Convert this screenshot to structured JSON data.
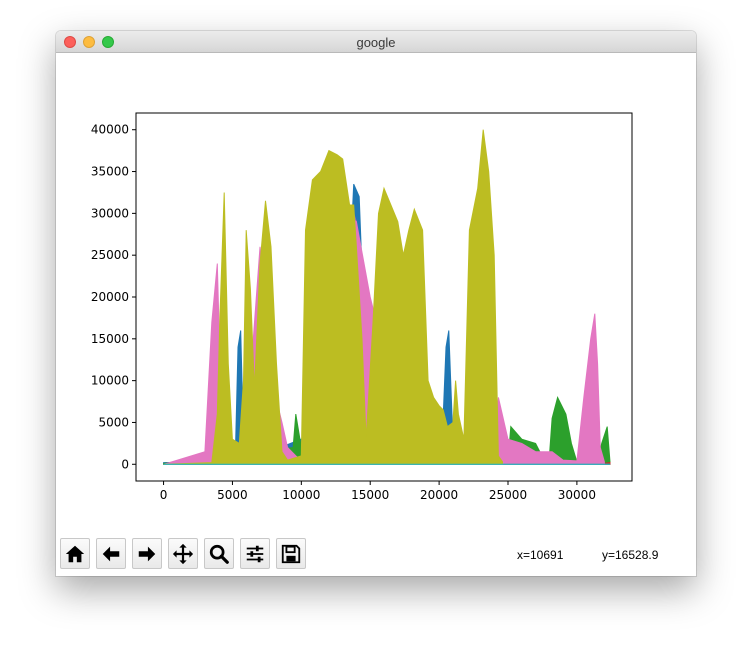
{
  "window": {
    "title": "google"
  },
  "toolbar": {
    "buttons": [
      {
        "name": "home-button",
        "icon": "home-icon"
      },
      {
        "name": "back-button",
        "icon": "arrow-left-icon"
      },
      {
        "name": "forward-button",
        "icon": "arrow-right-icon"
      },
      {
        "name": "pan-button",
        "icon": "move-icon"
      },
      {
        "name": "zoom-button",
        "icon": "magnifier-icon"
      },
      {
        "name": "configure-subplots-button",
        "icon": "sliders-icon"
      },
      {
        "name": "save-button",
        "icon": "floppy-disk-icon"
      }
    ]
  },
  "status": {
    "x_readout": "x=10691",
    "y_readout": "y=16528.9"
  },
  "chart_data": {
    "type": "area",
    "title": "",
    "xlabel": "",
    "ylabel": "",
    "xlim": [
      -2000,
      34000
    ],
    "ylim": [
      -2000,
      42000
    ],
    "xticks": [
      0,
      5000,
      10000,
      15000,
      20000,
      25000,
      30000
    ],
    "yticks": [
      0,
      5000,
      10000,
      15000,
      20000,
      25000,
      30000,
      35000,
      40000
    ],
    "grid": false,
    "legend": "none",
    "series": [
      {
        "color": "#1f77b4",
        "points": [
          [
            0,
            200
          ],
          [
            3000,
            300
          ],
          [
            5200,
            500
          ],
          [
            5400,
            14000
          ],
          [
            5600,
            16000
          ],
          [
            5800,
            3000
          ],
          [
            6200,
            500
          ],
          [
            13000,
            5000
          ],
          [
            13800,
            33500
          ],
          [
            14200,
            32000
          ],
          [
            14600,
            15000
          ],
          [
            15200,
            8000
          ],
          [
            15600,
            2000
          ],
          [
            20200,
            2000
          ],
          [
            20500,
            14000
          ],
          [
            20700,
            16000
          ],
          [
            21000,
            3000
          ],
          [
            22500,
            2000
          ],
          [
            22600,
            14000
          ],
          [
            22800,
            15000
          ],
          [
            23000,
            500
          ],
          [
            24500,
            300
          ]
        ]
      },
      {
        "color": "#2ca02c",
        "points": [
          [
            0,
            100
          ],
          [
            9400,
            2000
          ],
          [
            9600,
            6000
          ],
          [
            10000,
            2000
          ],
          [
            21800,
            2000
          ],
          [
            22000,
            5000
          ],
          [
            22400,
            2500
          ],
          [
            25000,
            300
          ],
          [
            25200,
            4500
          ],
          [
            26000,
            3000
          ],
          [
            27000,
            2500
          ],
          [
            27400,
            1200
          ],
          [
            28000,
            800
          ],
          [
            28200,
            5500
          ],
          [
            28600,
            8000
          ],
          [
            29200,
            6000
          ],
          [
            29600,
            2500
          ],
          [
            30000,
            300
          ],
          [
            31500,
            500
          ],
          [
            31800,
            2500
          ],
          [
            32200,
            4500
          ],
          [
            32400,
            300
          ]
        ]
      },
      {
        "color": "#d62728",
        "points": [
          [
            0,
            0
          ],
          [
            25000,
            0
          ],
          [
            32000,
            100
          ],
          [
            32400,
            200
          ]
        ]
      },
      {
        "color": "#9467bd",
        "points": [
          [
            0,
            0
          ],
          [
            12000,
            500
          ],
          [
            13600,
            31000
          ],
          [
            14000,
            29000
          ],
          [
            14400,
            17000
          ],
          [
            14700,
            3000
          ],
          [
            15000,
            500
          ]
        ]
      },
      {
        "color": "#8c564b",
        "points": [
          [
            0,
            0
          ],
          [
            32400,
            50
          ]
        ]
      },
      {
        "color": "#e377c2",
        "points": [
          [
            0,
            0
          ],
          [
            3000,
            1500
          ],
          [
            3500,
            17000
          ],
          [
            3900,
            24000
          ],
          [
            4200,
            6000
          ],
          [
            4600,
            2000
          ],
          [
            5400,
            1500
          ],
          [
            6200,
            8000
          ],
          [
            7000,
            26000
          ],
          [
            7400,
            20000
          ],
          [
            8000,
            9000
          ],
          [
            8600,
            5000
          ],
          [
            9000,
            2000
          ],
          [
            9600,
            1000
          ],
          [
            10000,
            500
          ],
          [
            13200,
            30000
          ],
          [
            14000,
            29000
          ],
          [
            15000,
            20000
          ],
          [
            15600,
            16000
          ],
          [
            16000,
            4000
          ],
          [
            16500,
            2000
          ],
          [
            17000,
            1200
          ],
          [
            19000,
            3000
          ],
          [
            20200,
            6500
          ],
          [
            20500,
            2000
          ],
          [
            21000,
            1500
          ],
          [
            22000,
            2000
          ],
          [
            23000,
            5000
          ],
          [
            24000,
            3000
          ],
          [
            24300,
            8000
          ],
          [
            25000,
            3000
          ],
          [
            26000,
            2500
          ],
          [
            27000,
            1500
          ],
          [
            28200,
            1500
          ],
          [
            29000,
            500
          ],
          [
            30000,
            400
          ],
          [
            30500,
            8000
          ],
          [
            31000,
            15000
          ],
          [
            31300,
            18000
          ],
          [
            31500,
            12000
          ],
          [
            31700,
            2000
          ],
          [
            32000,
            300
          ]
        ]
      },
      {
        "color": "#7f7f7f",
        "points": [
          [
            0,
            0
          ],
          [
            32400,
            0
          ]
        ]
      },
      {
        "color": "#bcbd22",
        "points": [
          [
            0,
            0
          ],
          [
            3500,
            200
          ],
          [
            3900,
            6000
          ],
          [
            4100,
            18000
          ],
          [
            4400,
            32500
          ],
          [
            4700,
            12000
          ],
          [
            5000,
            3000
          ],
          [
            5500,
            2500
          ],
          [
            5800,
            10000
          ],
          [
            6000,
            28000
          ],
          [
            6300,
            21000
          ],
          [
            6600,
            9000
          ],
          [
            7000,
            24000
          ],
          [
            7400,
            31500
          ],
          [
            7800,
            26000
          ],
          [
            8200,
            12000
          ],
          [
            8600,
            1500
          ],
          [
            9000,
            500
          ],
          [
            10000,
            1000
          ],
          [
            10300,
            28000
          ],
          [
            10800,
            34000
          ],
          [
            11400,
            35000
          ],
          [
            12000,
            37500
          ],
          [
            12600,
            37000
          ],
          [
            13000,
            36500
          ],
          [
            13500,
            31000
          ],
          [
            13800,
            31000
          ],
          [
            14000,
            26000
          ],
          [
            14400,
            15000
          ],
          [
            14700,
            3000
          ],
          [
            15200,
            17000
          ],
          [
            15600,
            30000
          ],
          [
            16000,
            33000
          ],
          [
            16500,
            31000
          ],
          [
            17000,
            29000
          ],
          [
            17400,
            25000
          ],
          [
            17800,
            28000
          ],
          [
            18200,
            30500
          ],
          [
            18800,
            28000
          ],
          [
            19200,
            10000
          ],
          [
            19600,
            8000
          ],
          [
            20000,
            7000
          ],
          [
            20300,
            6500
          ],
          [
            20600,
            4500
          ],
          [
            21000,
            5000
          ],
          [
            21200,
            10000
          ],
          [
            21400,
            6000
          ],
          [
            21800,
            3000
          ],
          [
            22200,
            28000
          ],
          [
            22800,
            33000
          ],
          [
            23200,
            40000
          ],
          [
            23600,
            35000
          ],
          [
            24000,
            25000
          ],
          [
            24300,
            1000
          ],
          [
            24600,
            300
          ]
        ]
      },
      {
        "color": "#17becf",
        "points": [
          [
            0,
            0
          ],
          [
            32400,
            0
          ]
        ]
      }
    ]
  }
}
